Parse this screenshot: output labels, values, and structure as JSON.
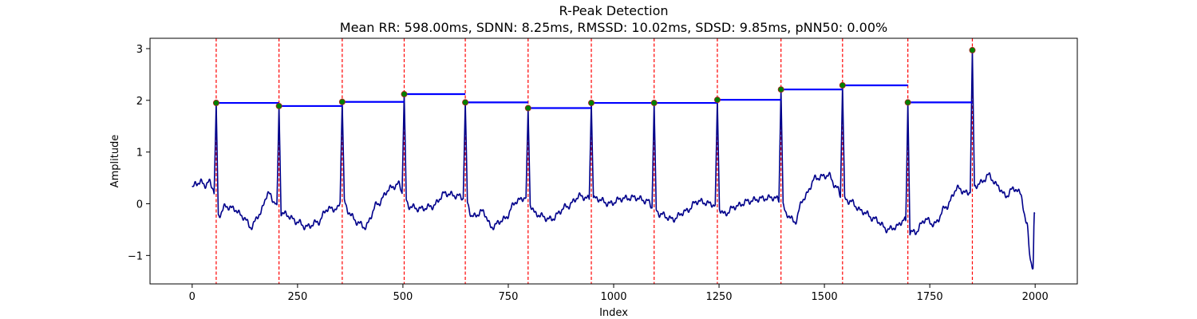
{
  "chart_data": {
    "type": "line",
    "title": "R-Peak Detection",
    "subtitle": "Mean RR: 598.00ms, SDNN: 8.25ms, RMSSD: 10.02ms, SDSD: 9.85ms, pNN50: 0.00%",
    "xlabel": "Index",
    "ylabel": "Amplitude",
    "xlim": [
      -100,
      2100
    ],
    "ylim": [
      -1.55,
      3.2
    ],
    "xticks": [
      0,
      250,
      500,
      750,
      1000,
      1250,
      1500,
      1750,
      2000
    ],
    "yticks": [
      -1,
      0,
      1,
      2,
      3
    ],
    "ytick_labels": [
      "−1",
      "0",
      "1",
      "2",
      "3"
    ],
    "grid": false,
    "legend": "none",
    "colors": {
      "signal": "#00008b",
      "peak_line": "#ff0000",
      "peak_marker": "#008000",
      "rr_segment": "#0000ff"
    },
    "signal_length": 2000,
    "signal_baseline": [
      [
        0,
        0.3
      ],
      [
        10,
        0.4
      ],
      [
        20,
        0.42
      ],
      [
        30,
        0.36
      ],
      [
        40,
        0.42
      ],
      [
        50,
        0.3
      ],
      [
        60,
        -0.25
      ],
      [
        80,
        -0.05
      ],
      [
        100,
        -0.1
      ],
      [
        120,
        -0.25
      ],
      [
        140,
        -0.45
      ],
      [
        160,
        -0.2
      ],
      [
        180,
        0.2
      ],
      [
        195,
        0.05
      ],
      [
        205,
        -0.15
      ],
      [
        220,
        -0.2
      ],
      [
        250,
        -0.35
      ],
      [
        270,
        -0.45
      ],
      [
        300,
        -0.35
      ],
      [
        320,
        -0.1
      ],
      [
        345,
        -0.1
      ],
      [
        356,
        0.15
      ],
      [
        370,
        -0.15
      ],
      [
        390,
        -0.35
      ],
      [
        410,
        -0.45
      ],
      [
        440,
        0.0
      ],
      [
        470,
        0.3
      ],
      [
        490,
        0.38
      ],
      [
        500,
        0.2
      ],
      [
        515,
        -0.05
      ],
      [
        540,
        -0.1
      ],
      [
        570,
        -0.05
      ],
      [
        600,
        0.2
      ],
      [
        630,
        0.15
      ],
      [
        648,
        0.1
      ],
      [
        665,
        -0.25
      ],
      [
        690,
        -0.15
      ],
      [
        710,
        -0.45
      ],
      [
        740,
        -0.3
      ],
      [
        770,
        0.05
      ],
      [
        790,
        0.12
      ],
      [
        800,
        0.0
      ],
      [
        815,
        -0.2
      ],
      [
        850,
        -0.3
      ],
      [
        890,
        -0.05
      ],
      [
        920,
        0.15
      ],
      [
        940,
        0.1
      ],
      [
        960,
        0.1
      ],
      [
        990,
        0.0
      ],
      [
        1020,
        0.1
      ],
      [
        1050,
        0.12
      ],
      [
        1080,
        0.05
      ],
      [
        1096,
        -0.1
      ],
      [
        1110,
        -0.2
      ],
      [
        1140,
        -0.3
      ],
      [
        1170,
        -0.15
      ],
      [
        1200,
        0.05
      ],
      [
        1230,
        0.0
      ],
      [
        1246,
        -0.05
      ],
      [
        1262,
        -0.2
      ],
      [
        1290,
        -0.05
      ],
      [
        1320,
        0.05
      ],
      [
        1350,
        0.1
      ],
      [
        1380,
        0.12
      ],
      [
        1397,
        0.05
      ],
      [
        1410,
        -0.2
      ],
      [
        1430,
        -0.35
      ],
      [
        1450,
        0.1
      ],
      [
        1480,
        0.5
      ],
      [
        1510,
        0.55
      ],
      [
        1530,
        0.3
      ],
      [
        1543,
        0.1
      ],
      [
        1560,
        0.05
      ],
      [
        1590,
        -0.15
      ],
      [
        1620,
        -0.3
      ],
      [
        1650,
        -0.5
      ],
      [
        1670,
        -0.45
      ],
      [
        1690,
        -0.3
      ],
      [
        1698,
        -0.55
      ],
      [
        1715,
        -0.55
      ],
      [
        1740,
        -0.3
      ],
      [
        1760,
        -0.4
      ],
      [
        1790,
        -0.05
      ],
      [
        1815,
        0.3
      ],
      [
        1840,
        0.2
      ],
      [
        1851,
        0.3
      ],
      [
        1870,
        0.4
      ],
      [
        1890,
        0.55
      ],
      [
        1910,
        0.35
      ],
      [
        1930,
        0.15
      ],
      [
        1950,
        0.3
      ],
      [
        1965,
        0.2
      ],
      [
        1980,
        -0.4
      ],
      [
        1990,
        -1.1
      ],
      [
        1995,
        -1.3
      ],
      [
        1998,
        -0.2
      ]
    ],
    "r_peaks": {
      "x": [
        57,
        206,
        356,
        503,
        648,
        797,
        947,
        1096,
        1246,
        1397,
        1543,
        1698,
        1851
      ],
      "y": [
        1.95,
        1.89,
        1.97,
        2.12,
        1.96,
        1.85,
        1.95,
        1.95,
        2.01,
        2.21,
        2.29,
        1.96,
        2.97
      ]
    },
    "series": [
      {
        "name": "",
        "kind": "ecg_signal"
      },
      {
        "name": "",
        "kind": "r_peak_markers"
      },
      {
        "name": "",
        "kind": "peak_vlines"
      },
      {
        "name": "",
        "kind": "rr_segments"
      }
    ]
  }
}
